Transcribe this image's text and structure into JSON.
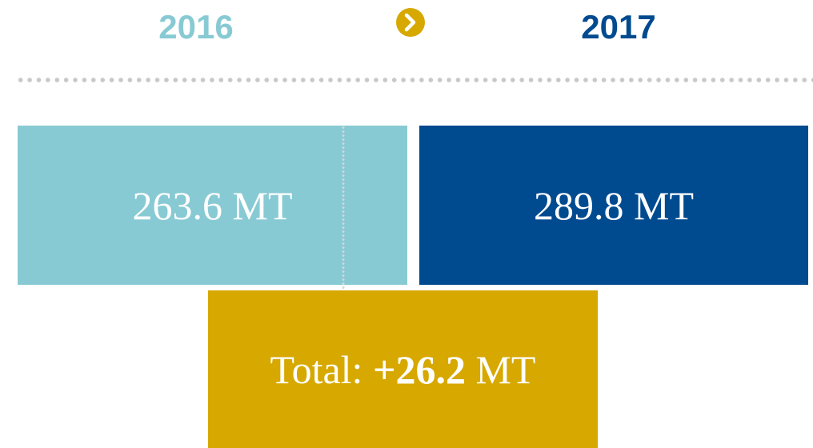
{
  "header": {
    "from": "2016",
    "to": "2017"
  },
  "boxes": [
    {
      "text": "263.6 MT"
    },
    {
      "text": "289.8 MT"
    }
  ],
  "total": {
    "label": "Total:",
    "value": "+26.2",
    "unit": "MT"
  }
}
